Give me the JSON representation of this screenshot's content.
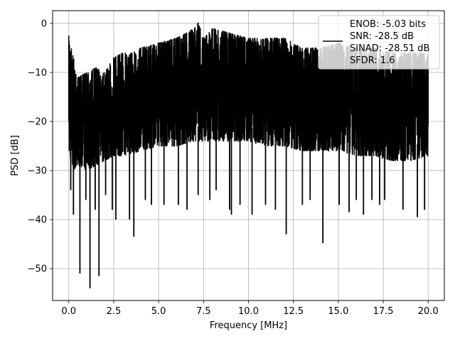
{
  "chart_data": {
    "type": "line",
    "title": "",
    "xlabel": "Frequency [MHz]",
    "ylabel": "PSD [dB]",
    "xlim": [
      -0.9,
      20.9
    ],
    "ylim": [
      -56.5,
      2.6
    ],
    "grid": true,
    "legend_position": "top-right",
    "legend_lines": [
      "ENOB: -5.03 bits",
      "SNR: -28.5 dB",
      "SINAD: -28.51 dB",
      "SFDR: 1.6"
    ],
    "x_ticks": [
      {
        "value": 0.0,
        "label": "0.0"
      },
      {
        "value": 2.5,
        "label": "2.5"
      },
      {
        "value": 5.0,
        "label": "5.0"
      },
      {
        "value": 7.5,
        "label": "7.5"
      },
      {
        "value": 10.0,
        "label": "10.0"
      },
      {
        "value": 12.5,
        "label": "12.5"
      },
      {
        "value": 15.0,
        "label": "15.0"
      },
      {
        "value": 17.5,
        "label": "17.5"
      },
      {
        "value": 20.0,
        "label": "20.0"
      }
    ],
    "y_ticks": [
      {
        "value": 0,
        "label": "0"
      },
      {
        "value": -10,
        "label": "−10"
      },
      {
        "value": -20,
        "label": "−20"
      },
      {
        "value": -30,
        "label": "−30"
      },
      {
        "value": -40,
        "label": "−40"
      },
      {
        "value": -50,
        "label": "−50"
      }
    ],
    "series": [
      {
        "color": "#000000",
        "x_range": [
          0.0,
          20.0
        ],
        "envelope_note": "dense noise PSD trace",
        "upper_envelope": [
          [
            0.0,
            -2.5
          ],
          [
            0.5,
            -11
          ],
          [
            1.0,
            -10
          ],
          [
            1.5,
            -9
          ],
          [
            2.0,
            -10
          ],
          [
            2.5,
            -7
          ],
          [
            3.0,
            -6
          ],
          [
            3.5,
            -6
          ],
          [
            4.0,
            -5
          ],
          [
            5.0,
            -4
          ],
          [
            6.0,
            -3
          ],
          [
            7.0,
            -1
          ],
          [
            7.2,
            0.2
          ],
          [
            7.5,
            -3
          ],
          [
            8.0,
            -1
          ],
          [
            9.0,
            -2
          ],
          [
            10.0,
            -3
          ],
          [
            11.0,
            -3
          ],
          [
            12.0,
            -3
          ],
          [
            13.0,
            -5
          ],
          [
            14.0,
            -5
          ],
          [
            15.0,
            -4
          ],
          [
            16.0,
            -5
          ],
          [
            17.0,
            -5
          ],
          [
            18.0,
            -6
          ],
          [
            19.0,
            -6
          ],
          [
            20.0,
            -6
          ]
        ],
        "lower_envelope": [
          [
            0.0,
            -26
          ],
          [
            0.2,
            -30
          ],
          [
            0.6,
            -29
          ],
          [
            1.0,
            -30
          ],
          [
            1.5,
            -29
          ],
          [
            2.0,
            -28
          ],
          [
            2.5,
            -27
          ],
          [
            3.0,
            -27
          ],
          [
            4.0,
            -26
          ],
          [
            5.0,
            -25
          ],
          [
            6.0,
            -25
          ],
          [
            7.0,
            -24
          ],
          [
            8.0,
            -24
          ],
          [
            9.0,
            -24
          ],
          [
            10.0,
            -24
          ],
          [
            11.0,
            -25
          ],
          [
            12.0,
            -25
          ],
          [
            13.0,
            -26
          ],
          [
            14.0,
            -26
          ],
          [
            15.0,
            -26
          ],
          [
            16.0,
            -27
          ],
          [
            17.0,
            -27
          ],
          [
            18.0,
            -28
          ],
          [
            19.0,
            -28
          ],
          [
            20.0,
            -27
          ]
        ],
        "deep_dips": [
          [
            0.11,
            -34
          ],
          [
            0.26,
            -39
          ],
          [
            0.62,
            -51
          ],
          [
            0.95,
            -36
          ],
          [
            1.18,
            -54
          ],
          [
            1.47,
            -38
          ],
          [
            1.68,
            -51.5
          ],
          [
            2.05,
            -35
          ],
          [
            2.42,
            -38
          ],
          [
            2.62,
            -40
          ],
          [
            3.38,
            -40
          ],
          [
            3.62,
            -43.5
          ],
          [
            4.26,
            -36
          ],
          [
            4.6,
            -37
          ],
          [
            5.3,
            -37
          ],
          [
            6.1,
            -37
          ],
          [
            6.58,
            -38
          ],
          [
            7.2,
            -35
          ],
          [
            7.85,
            -36
          ],
          [
            8.2,
            -34
          ],
          [
            8.95,
            -38
          ],
          [
            9.05,
            -39
          ],
          [
            9.53,
            -37
          ],
          [
            10.2,
            -39
          ],
          [
            10.95,
            -37
          ],
          [
            11.5,
            -38
          ],
          [
            12.1,
            -43
          ],
          [
            13.0,
            -37
          ],
          [
            13.43,
            -36
          ],
          [
            14.14,
            -44.8
          ],
          [
            15.05,
            -37
          ],
          [
            15.6,
            -38.5
          ],
          [
            16.0,
            -36
          ],
          [
            16.4,
            -39
          ],
          [
            16.87,
            -36
          ],
          [
            17.3,
            -37
          ],
          [
            17.58,
            -36
          ],
          [
            18.6,
            -38
          ],
          [
            19.4,
            -39.5
          ],
          [
            19.8,
            -38
          ]
        ]
      }
    ]
  }
}
